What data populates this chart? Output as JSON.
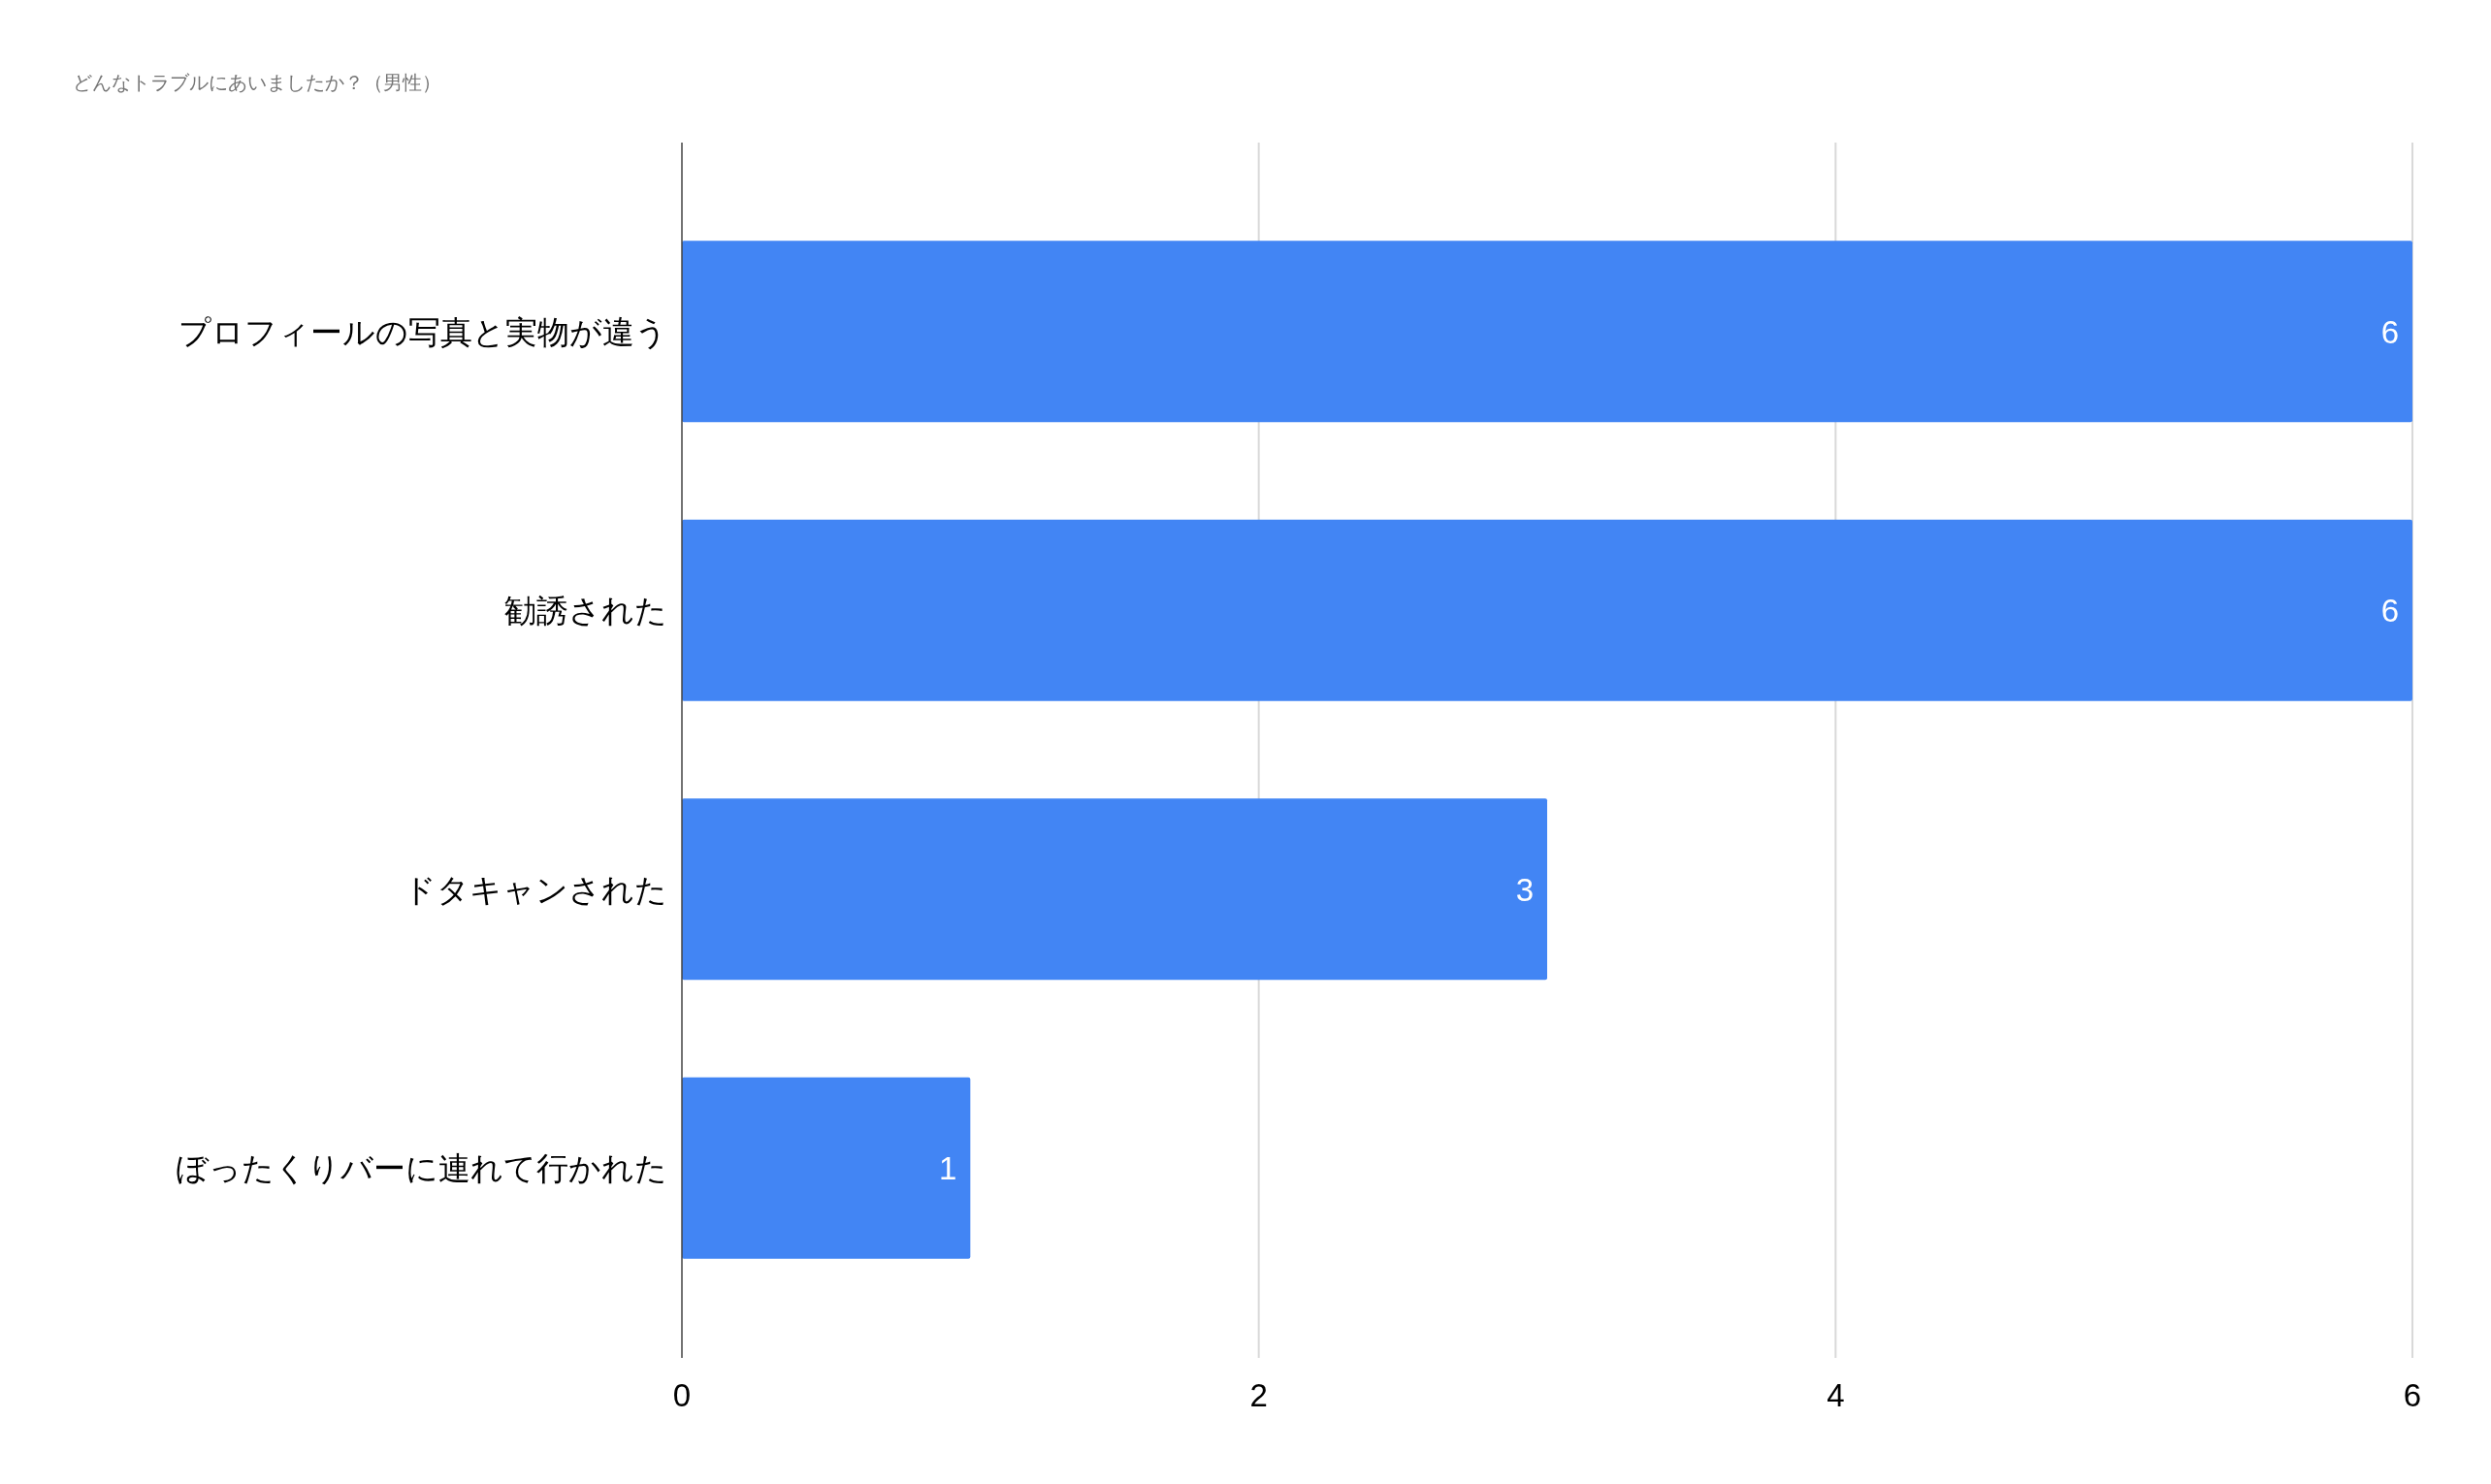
{
  "chart_data": {
    "type": "bar",
    "orientation": "horizontal",
    "title": "どんなトラブルにあいましたか？（男性）",
    "categories": [
      "プロフィールの写真と実物が違う",
      "勧誘された",
      "ドタキャンされた",
      "ぼったくりバーに連れて行かれた"
    ],
    "values": [
      6,
      6,
      3,
      1
    ],
    "color": "#4285f4",
    "xlim": [
      0,
      6
    ],
    "xticks": [
      0,
      2,
      4,
      6
    ],
    "grid": "x",
    "data_labels": true
  }
}
